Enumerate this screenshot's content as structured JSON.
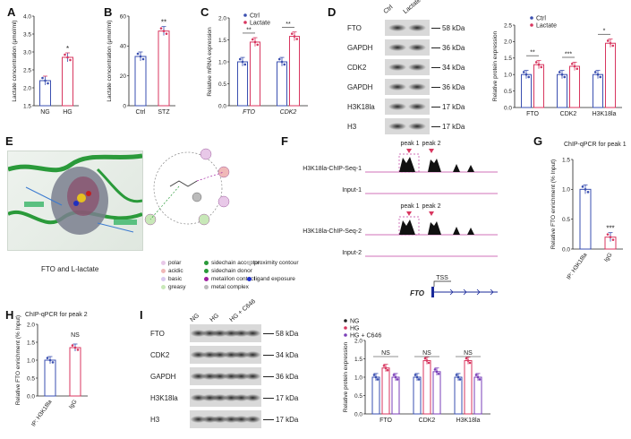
{
  "panels": {
    "A": {
      "letter": "A",
      "ylabel": "Lactate concentration (μmol/ml)",
      "categories": [
        "NG",
        "HG"
      ],
      "yticks": [
        "2.0",
        "2.5",
        "3.0",
        "3.5",
        "4.0",
        "1.5"
      ],
      "sig": "*"
    },
    "B": {
      "letter": "B",
      "ylabel": "Lactate concentration (μmol/ml)",
      "categories": [
        "Ctrl",
        "STZ"
      ],
      "yticks": [
        "0",
        "20",
        "40",
        "60"
      ],
      "sig": "**"
    },
    "C": {
      "letter": "C",
      "ylabel": "Relative mRNA expression",
      "legend": [
        "Ctrl",
        "Lactate"
      ],
      "categories": [
        "FTO",
        "CDK2"
      ],
      "yticks": [
        "0.0",
        "0.5",
        "1.0",
        "1.5",
        "2.0"
      ],
      "sig": [
        "**",
        "**"
      ]
    },
    "D": {
      "letter": "D",
      "lanes": [
        "Ctrl",
        "Lactate"
      ],
      "blots": [
        {
          "name": "FTO",
          "kda": "58 kDa"
        },
        {
          "name": "GAPDH",
          "kda": "36 kDa"
        },
        {
          "name": "CDK2",
          "kda": "34 kDa"
        },
        {
          "name": "GAPDH",
          "kda": "36 kDa"
        },
        {
          "name": "H3K18la",
          "kda": "17 kDa"
        },
        {
          "name": "H3",
          "kda": "17 kDa"
        }
      ],
      "ylabel": "Relative protein expression",
      "legend": [
        "Ctrl",
        "Lactate"
      ],
      "categories": [
        "FTO",
        "CDK2",
        "H3K18la"
      ],
      "yticks": [
        "0.0",
        "0.5",
        "1.0",
        "1.5",
        "2.0",
        "2.5"
      ],
      "sig": [
        "**",
        "***",
        "*"
      ]
    },
    "E": {
      "letter": "E",
      "caption": "FTO and L-lactate",
      "legend": [
        [
          "polar",
          "sidechain acceptor",
          "proximity contour"
        ],
        [
          "acidic",
          "sidechain donor",
          ""
        ],
        [
          "basic",
          "metal/ion contact",
          "ligand exposure"
        ],
        [
          "greasy",
          "metal complex",
          ""
        ]
      ]
    },
    "F": {
      "letter": "F",
      "tracks": [
        "H3K18la-ChIP-Seq-1",
        "Input-1",
        "H3K18la-ChIP-Seq-2",
        "Input-2"
      ],
      "peaks": [
        "peak 1",
        "peak 2"
      ],
      "gene": "FTO",
      "tss": "TSS"
    },
    "G": {
      "letter": "G",
      "title": "ChIP-qPCR for peak 1",
      "ylabel": "Relative FTO enrichment (% Input)",
      "categories": [
        "IP: H3K18la",
        "IgG"
      ],
      "yticks": [
        "0.0",
        "0.5",
        "1.0",
        "1.5"
      ],
      "sig": "***"
    },
    "H": {
      "letter": "H",
      "title": "ChIP-qPCR for peak 2",
      "ylabel": "Relative FTO enrichment (% Input)",
      "categories": [
        "IP: H3K18la",
        "IgG"
      ],
      "yticks": [
        "0.0",
        "0.5",
        "1.0",
        "1.5",
        "2.0"
      ],
      "sig": "NS"
    },
    "I": {
      "letter": "I",
      "lanes": [
        "NG",
        "HG",
        "HG + C646"
      ],
      "blots": [
        {
          "name": "FTO",
          "kda": "58 kDa"
        },
        {
          "name": "CDK2",
          "kda": "34 kDa"
        },
        {
          "name": "GAPDH",
          "kda": "36 kDa"
        },
        {
          "name": "H3K18la",
          "kda": "17 kDa"
        },
        {
          "name": "H3",
          "kda": "17 kDa"
        }
      ],
      "ylabel": "Relative protein expression",
      "legend": [
        "NG",
        "HG",
        "HG + C646"
      ],
      "categories": [
        "FTO",
        "CDK2",
        "H3K18la"
      ],
      "yticks": [
        "0.0",
        "0.5",
        "1.0",
        "1.5",
        "2.0"
      ],
      "sig": [
        "NS",
        "NS",
        "NS"
      ]
    }
  },
  "colors": {
    "blue": "#3a4fb0",
    "red": "#d8365f"
  },
  "chart_data": [
    {
      "panel": "A",
      "type": "bar",
      "categories": [
        "NG",
        "HG"
      ],
      "values": [
        2.2,
        2.85
      ],
      "ylim": [
        1.5,
        4.0
      ]
    },
    {
      "panel": "B",
      "type": "bar",
      "categories": [
        "Ctrl",
        "STZ"
      ],
      "values": [
        33,
        50
      ],
      "ylim": [
        0,
        60
      ]
    },
    {
      "panel": "C",
      "type": "bar",
      "categories": [
        "FTO",
        "CDK2"
      ],
      "series": [
        {
          "name": "Ctrl",
          "values": [
            1.0,
            1.0
          ]
        },
        {
          "name": "Lactate",
          "values": [
            1.45,
            1.58
          ]
        }
      ],
      "ylim": [
        0,
        2.0
      ]
    },
    {
      "panel": "D",
      "type": "bar",
      "categories": [
        "FTO",
        "CDK2",
        "H3K18la"
      ],
      "series": [
        {
          "name": "Ctrl",
          "values": [
            1.0,
            1.0,
            1.0
          ]
        },
        {
          "name": "Lactate",
          "values": [
            1.3,
            1.25,
            1.95
          ]
        }
      ],
      "ylim": [
        0,
        2.5
      ]
    },
    {
      "panel": "G",
      "type": "bar",
      "categories": [
        "IP: H3K18la",
        "IgG"
      ],
      "values": [
        1.0,
        0.2
      ],
      "ylim": [
        0,
        1.5
      ]
    },
    {
      "panel": "H",
      "type": "bar",
      "categories": [
        "IP: H3K18la",
        "IgG"
      ],
      "values": [
        1.0,
        1.35
      ],
      "ylim": [
        0,
        2.0
      ]
    },
    {
      "panel": "I",
      "type": "bar",
      "categories": [
        "FTO",
        "CDK2",
        "H3K18la"
      ],
      "series": [
        {
          "name": "NG",
          "values": [
            1.0,
            1.0,
            1.0
          ]
        },
        {
          "name": "HG",
          "values": [
            1.25,
            1.45,
            1.45
          ]
        },
        {
          "name": "HG + C646",
          "values": [
            1.0,
            1.15,
            1.0
          ]
        }
      ],
      "ylim": [
        0,
        2.0
      ]
    }
  ]
}
